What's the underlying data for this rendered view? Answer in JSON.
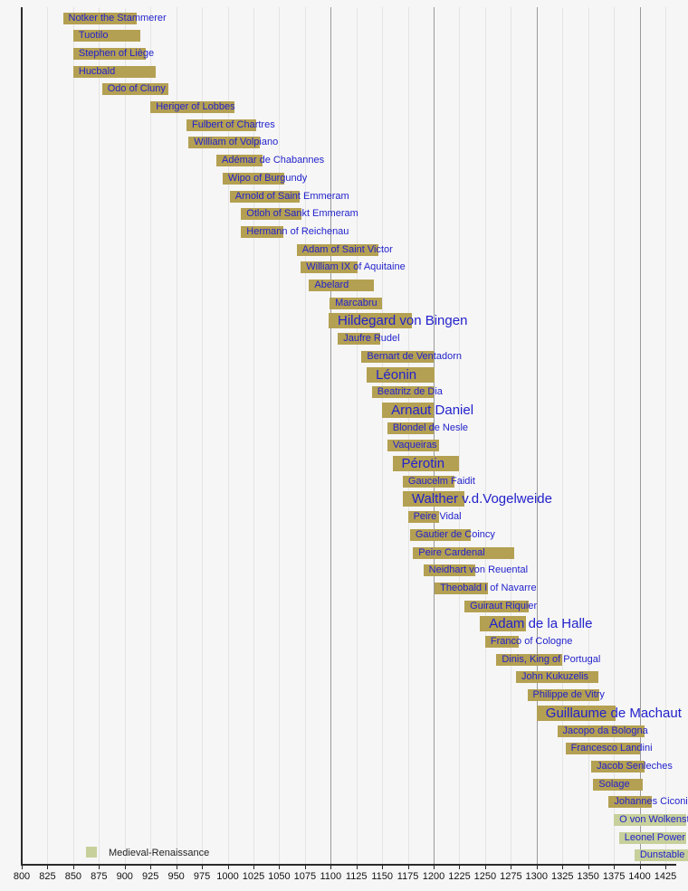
{
  "chart_data": {
    "type": "bar",
    "subtype": "timeline-gantt",
    "title": "",
    "xlabel": "",
    "ylabel": "",
    "axis": {
      "min_year": 800,
      "max_year": 1425,
      "tick_step": 25,
      "tick_labels": [
        "800",
        "825",
        "850",
        "875",
        "900",
        "925",
        "950",
        "975",
        "1000",
        "1025",
        "1050",
        "1075",
        "1100",
        "1125",
        "1150",
        "1175",
        "1200",
        "1225",
        "1250",
        "1275",
        "1300",
        "1325",
        "1350",
        "1375",
        "1400",
        "1425"
      ],
      "major_gridline_years": [
        1100,
        1200,
        1300,
        1400
      ],
      "grid": true
    },
    "legend": [
      {
        "label": "Medieval-Renaissance",
        "color": "#c7d09b"
      }
    ],
    "colors": {
      "medieval_bar": "#b4a052",
      "medieval_renaissance_bar": "#c7d09b",
      "bar_text": "#2222cc",
      "axis_text": "#111111",
      "gridline_minor": "#e4e4e4",
      "gridline_major": "#9a9a9a",
      "axis_line": "#2b2b2b",
      "background": "#f6f6f6"
    },
    "bars": [
      {
        "name": "Notker the Stammerer",
        "start": 840,
        "end": 912,
        "emphasis": false,
        "category": "medieval"
      },
      {
        "name": "Tuotilo",
        "start": 850,
        "end": 915,
        "emphasis": false,
        "category": "medieval"
      },
      {
        "name": "Stephen of Liège",
        "start": 850,
        "end": 920,
        "emphasis": false,
        "category": "medieval"
      },
      {
        "name": "Hucbald",
        "start": 850,
        "end": 930,
        "emphasis": false,
        "category": "medieval"
      },
      {
        "name": "Odo of Cluny",
        "start": 878,
        "end": 942,
        "emphasis": false,
        "category": "medieval"
      },
      {
        "name": "Heriger of Lobbes",
        "start": 925,
        "end": 1007,
        "emphasis": false,
        "category": "medieval"
      },
      {
        "name": "Fulbert of Chartres",
        "start": 960,
        "end": 1028,
        "emphasis": false,
        "category": "medieval"
      },
      {
        "name": "William of Volpiano",
        "start": 962,
        "end": 1031,
        "emphasis": false,
        "category": "medieval"
      },
      {
        "name": "Adémar de Chabannes",
        "start": 989,
        "end": 1034,
        "emphasis": false,
        "category": "medieval"
      },
      {
        "name": "Wipo of Burgundy",
        "start": 995,
        "end": 1055,
        "emphasis": false,
        "category": "medieval"
      },
      {
        "name": "Arnold of Saint Emmeram",
        "start": 1002,
        "end": 1070,
        "emphasis": false,
        "category": "medieval"
      },
      {
        "name": "Otloh of Sankt Emmeram",
        "start": 1013,
        "end": 1072,
        "emphasis": false,
        "category": "medieval"
      },
      {
        "name": "Hermann of Reichenau",
        "start": 1013,
        "end": 1054,
        "emphasis": false,
        "category": "medieval"
      },
      {
        "name": "Adam of Saint Victor",
        "start": 1067,
        "end": 1146,
        "emphasis": false,
        "category": "medieval"
      },
      {
        "name": "William IX of Aquitaine",
        "start": 1071,
        "end": 1126,
        "emphasis": false,
        "category": "medieval"
      },
      {
        "name": "Abelard",
        "start": 1079,
        "end": 1142,
        "emphasis": false,
        "category": "medieval"
      },
      {
        "name": "Marcabru",
        "start": 1099,
        "end": 1150,
        "emphasis": false,
        "category": "medieval"
      },
      {
        "name": "Hildegard von Bingen",
        "start": 1098,
        "end": 1179,
        "emphasis": true,
        "category": "medieval"
      },
      {
        "name": "Jaufre Rudel",
        "start": 1107,
        "end": 1148,
        "emphasis": false,
        "category": "medieval"
      },
      {
        "name": "Bernart de Ventadorn",
        "start": 1130,
        "end": 1200,
        "emphasis": false,
        "category": "medieval"
      },
      {
        "name": "Léonin",
        "start": 1135,
        "end": 1201,
        "emphasis": true,
        "category": "medieval"
      },
      {
        "name": "Beatritz de Dia",
        "start": 1140,
        "end": 1200,
        "emphasis": false,
        "category": "medieval"
      },
      {
        "name": "Arnaut Daniel",
        "start": 1150,
        "end": 1200,
        "emphasis": true,
        "category": "medieval"
      },
      {
        "name": "Blondel de Nesle",
        "start": 1155,
        "end": 1200,
        "emphasis": false,
        "category": "medieval"
      },
      {
        "name": "Vaqueiras",
        "start": 1155,
        "end": 1205,
        "emphasis": false,
        "category": "medieval"
      },
      {
        "name": "Pérotin",
        "start": 1160,
        "end": 1225,
        "emphasis": true,
        "category": "medieval"
      },
      {
        "name": "Gaucelm Faidit",
        "start": 1170,
        "end": 1220,
        "emphasis": false,
        "category": "medieval"
      },
      {
        "name": "Walther v.d.Vogelweide",
        "start": 1170,
        "end": 1230,
        "emphasis": true,
        "category": "medieval"
      },
      {
        "name": "Peire Vidal",
        "start": 1175,
        "end": 1205,
        "emphasis": false,
        "category": "medieval"
      },
      {
        "name": "Gautier de Coincy",
        "start": 1177,
        "end": 1236,
        "emphasis": false,
        "category": "medieval"
      },
      {
        "name": "Peire Cardenal",
        "start": 1180,
        "end": 1278,
        "emphasis": false,
        "category": "medieval"
      },
      {
        "name": "Neidhart von Reuental",
        "start": 1190,
        "end": 1240,
        "emphasis": false,
        "category": "medieval"
      },
      {
        "name": "Theobald I of Navarre",
        "start": 1201,
        "end": 1253,
        "emphasis": false,
        "category": "medieval"
      },
      {
        "name": "Guiraut Riquier",
        "start": 1230,
        "end": 1292,
        "emphasis": false,
        "category": "medieval"
      },
      {
        "name": "Adam de la Halle",
        "start": 1245,
        "end": 1290,
        "emphasis": true,
        "category": "medieval"
      },
      {
        "name": "Franco of Cologne",
        "start": 1250,
        "end": 1283,
        "emphasis": false,
        "category": "medieval"
      },
      {
        "name": "Dinis, King of Portugal",
        "start": 1261,
        "end": 1325,
        "emphasis": false,
        "category": "medieval"
      },
      {
        "name": "John Kukuzelis",
        "start": 1280,
        "end": 1360,
        "emphasis": false,
        "category": "medieval"
      },
      {
        "name": "Philippe de Vitry",
        "start": 1291,
        "end": 1361,
        "emphasis": false,
        "category": "medieval"
      },
      {
        "name": "Guillaume de Machaut",
        "start": 1300,
        "end": 1377,
        "emphasis": true,
        "category": "medieval"
      },
      {
        "name": "Jacopo da Bologna",
        "start": 1320,
        "end": 1405,
        "emphasis": false,
        "category": "medieval"
      },
      {
        "name": "Francesco Landini",
        "start": 1328,
        "end": 1400,
        "emphasis": false,
        "category": "medieval"
      },
      {
        "name": "Jacob Senleches",
        "start": 1353,
        "end": 1405,
        "emphasis": false,
        "category": "medieval"
      },
      {
        "name": "Solage",
        "start": 1355,
        "end": 1403,
        "emphasis": false,
        "category": "medieval"
      },
      {
        "name": "Johannes Ciconia",
        "start": 1370,
        "end": 1412,
        "emphasis": false,
        "category": "medieval"
      },
      {
        "name": "O von Wolkenstein",
        "start": 1375,
        "end": 1445,
        "emphasis": false,
        "category": "medieval_renaissance"
      },
      {
        "name": "Leonel Power",
        "start": 1380,
        "end": 1445,
        "emphasis": false,
        "category": "medieval_renaissance"
      },
      {
        "name": "Dunstable",
        "start": 1395,
        "end": 1453,
        "emphasis": false,
        "category": "medieval_renaissance"
      }
    ]
  }
}
